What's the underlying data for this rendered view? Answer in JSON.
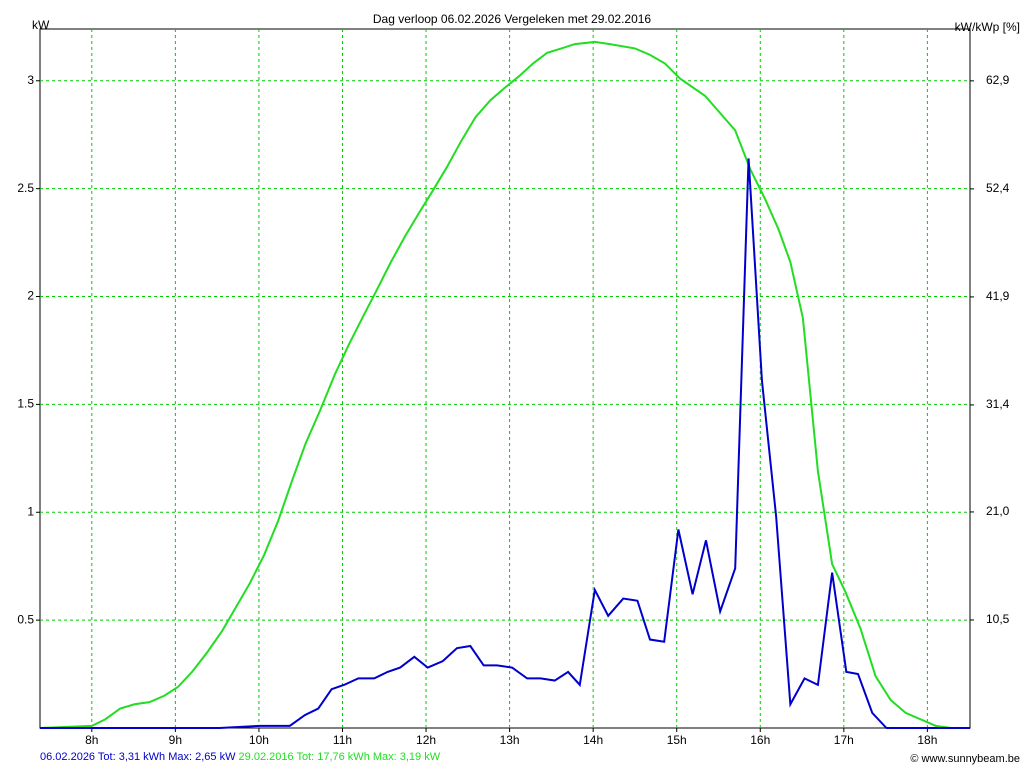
{
  "chart_data": {
    "type": "line",
    "title": "Dag  verloop 06.02.2026   Vergeleken met 29.02.2016",
    "y_label": "kW",
    "y2_label": "kW/kWp [%]",
    "credit": "© www.sunnybeam.be",
    "xlim": [
      7.38,
      18.51
    ],
    "xticks": [
      {
        "value": 8,
        "label": "8h"
      },
      {
        "value": 9,
        "label": "9h"
      },
      {
        "value": 10,
        "label": "10h"
      },
      {
        "value": 11,
        "label": "11h"
      },
      {
        "value": 12,
        "label": "12h"
      },
      {
        "value": 13,
        "label": "13h"
      },
      {
        "value": 14,
        "label": "14h"
      },
      {
        "value": 15,
        "label": "15h"
      },
      {
        "value": 16,
        "label": "16h"
      },
      {
        "value": 17,
        "label": "17h"
      },
      {
        "value": 18,
        "label": "18h"
      }
    ],
    "ylim": [
      0,
      3.24
    ],
    "yticks": [
      0.5,
      1,
      1.5,
      2,
      2.5,
      3
    ],
    "y2lim": [
      0,
      67.94
    ],
    "y2ticks": [
      {
        "value": 10.5,
        "label": "10,5"
      },
      {
        "value": 21,
        "label": "21,0"
      },
      {
        "value": 31.4,
        "label": "31,4"
      },
      {
        "value": 41.9,
        "label": "41,9"
      },
      {
        "value": 52.4,
        "label": "52,4"
      },
      {
        "value": 62.9,
        "label": "62,9"
      }
    ],
    "grid": true,
    "grid_color": "#00cc00",
    "series": [
      {
        "name": "06.02.2026 Tot: 3,31 kWh Max: 2,65 kW",
        "color": "#0000cc",
        "x": [
          7.38,
          9.53,
          10.01,
          10.37,
          10.55,
          10.71,
          10.87,
          11.02,
          11.19,
          11.38,
          11.54,
          11.69,
          11.86,
          12.02,
          12.2,
          12.37,
          12.53,
          12.69,
          12.85,
          13.03,
          13.21,
          13.37,
          13.54,
          13.7,
          13.84,
          14.02,
          14.18,
          14.36,
          14.53,
          14.68,
          14.85,
          15.02,
          15.19,
          15.35,
          15.52,
          15.7,
          15.86,
          16.02,
          16.19,
          16.36,
          16.53,
          16.69,
          16.86,
          17.03,
          17.17,
          17.34,
          17.51,
          17.68,
          18.51
        ],
        "values": [
          0,
          0,
          0.01,
          0.01,
          0.06,
          0.09,
          0.18,
          0.2,
          0.23,
          0.23,
          0.26,
          0.28,
          0.33,
          0.28,
          0.31,
          0.37,
          0.38,
          0.29,
          0.29,
          0.28,
          0.23,
          0.23,
          0.22,
          0.26,
          0.2,
          0.64,
          0.52,
          0.6,
          0.59,
          0.41,
          0.4,
          0.92,
          0.62,
          0.87,
          0.54,
          0.74,
          2.64,
          1.61,
          0.98,
          0.11,
          0.23,
          0.2,
          0.72,
          0.26,
          0.25,
          0.07,
          0,
          0,
          0
        ]
      },
      {
        "name": "29.02.2016 Tot: 17,76 kWh Max: 3,19 kW",
        "color": "#22dd22",
        "x": [
          7.38,
          8.0,
          8.16,
          8.34,
          8.51,
          8.69,
          8.87,
          9.03,
          9.2,
          9.38,
          9.56,
          9.71,
          9.89,
          10.06,
          10.23,
          10.4,
          10.56,
          10.73,
          10.91,
          11.08,
          11.25,
          11.41,
          11.58,
          11.75,
          11.92,
          12.08,
          12.25,
          12.42,
          12.59,
          12.77,
          12.95,
          13.11,
          13.28,
          13.45,
          13.62,
          13.78,
          14.02,
          14.2,
          14.5,
          14.68,
          14.86,
          15.04,
          15.34,
          15.52,
          15.7,
          15.88,
          16.06,
          16.22,
          16.36,
          16.51,
          16.69,
          16.86,
          17.02,
          17.2,
          17.38,
          17.56,
          17.74,
          17.92,
          18.1,
          18.28,
          18.51
        ],
        "values": [
          0,
          0.01,
          0.04,
          0.09,
          0.11,
          0.12,
          0.15,
          0.19,
          0.26,
          0.35,
          0.45,
          0.55,
          0.67,
          0.8,
          0.96,
          1.15,
          1.32,
          1.47,
          1.64,
          1.78,
          1.91,
          2.03,
          2.16,
          2.28,
          2.39,
          2.49,
          2.6,
          2.72,
          2.83,
          2.91,
          2.97,
          3.02,
          3.08,
          3.13,
          3.15,
          3.17,
          3.18,
          3.17,
          3.15,
          3.12,
          3.08,
          3.01,
          2.93,
          2.85,
          2.77,
          2.59,
          2.45,
          2.31,
          2.16,
          1.9,
          1.19,
          0.76,
          0.63,
          0.46,
          0.24,
          0.13,
          0.07,
          0.04,
          0.01,
          0,
          0
        ]
      }
    ]
  }
}
